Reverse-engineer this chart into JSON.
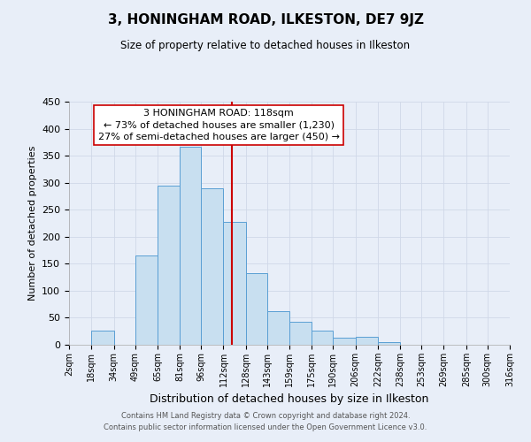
{
  "title": "3, HONINGHAM ROAD, ILKESTON, DE7 9JZ",
  "subtitle": "Size of property relative to detached houses in Ilkeston",
  "xlabel": "Distribution of detached houses by size in Ilkeston",
  "ylabel": "Number of detached properties",
  "footer_line1": "Contains HM Land Registry data © Crown copyright and database right 2024.",
  "footer_line2": "Contains public sector information licensed under the Open Government Licence v3.0.",
  "bar_left_edges": [
    2,
    18,
    34,
    49,
    65,
    81,
    96,
    112,
    128,
    143,
    159,
    175,
    190,
    206,
    222,
    238,
    253,
    269,
    285,
    300
  ],
  "bar_heights": [
    0,
    27,
    0,
    165,
    295,
    367,
    290,
    228,
    133,
    62,
    43,
    27,
    13,
    15,
    5,
    0,
    0,
    0,
    0,
    0
  ],
  "bar_color": "#c8dff0",
  "bar_edge_color": "#5a9fd4",
  "x_tick_labels": [
    "2sqm",
    "18sqm",
    "34sqm",
    "49sqm",
    "65sqm",
    "81sqm",
    "96sqm",
    "112sqm",
    "128sqm",
    "143sqm",
    "159sqm",
    "175sqm",
    "190sqm",
    "206sqm",
    "222sqm",
    "238sqm",
    "253sqm",
    "269sqm",
    "285sqm",
    "300sqm",
    "316sqm"
  ],
  "x_tick_positions": [
    2,
    18,
    34,
    49,
    65,
    81,
    96,
    112,
    128,
    143,
    159,
    175,
    190,
    206,
    222,
    238,
    253,
    269,
    285,
    300,
    316
  ],
  "ylim": [
    0,
    450
  ],
  "xlim": [
    2,
    316
  ],
  "property_value": 118,
  "vline_color": "#cc0000",
  "annotation_title": "3 HONINGHAM ROAD: 118sqm",
  "annotation_line1": "← 73% of detached houses are smaller (1,230)",
  "annotation_line2": "27% of semi-detached houses are larger (450) →",
  "annotation_box_facecolor": "#ffffff",
  "annotation_box_edgecolor": "#cc0000",
  "grid_color": "#d0d8e8",
  "background_color": "#e8eef8",
  "axes_facecolor": "#e8eef8"
}
